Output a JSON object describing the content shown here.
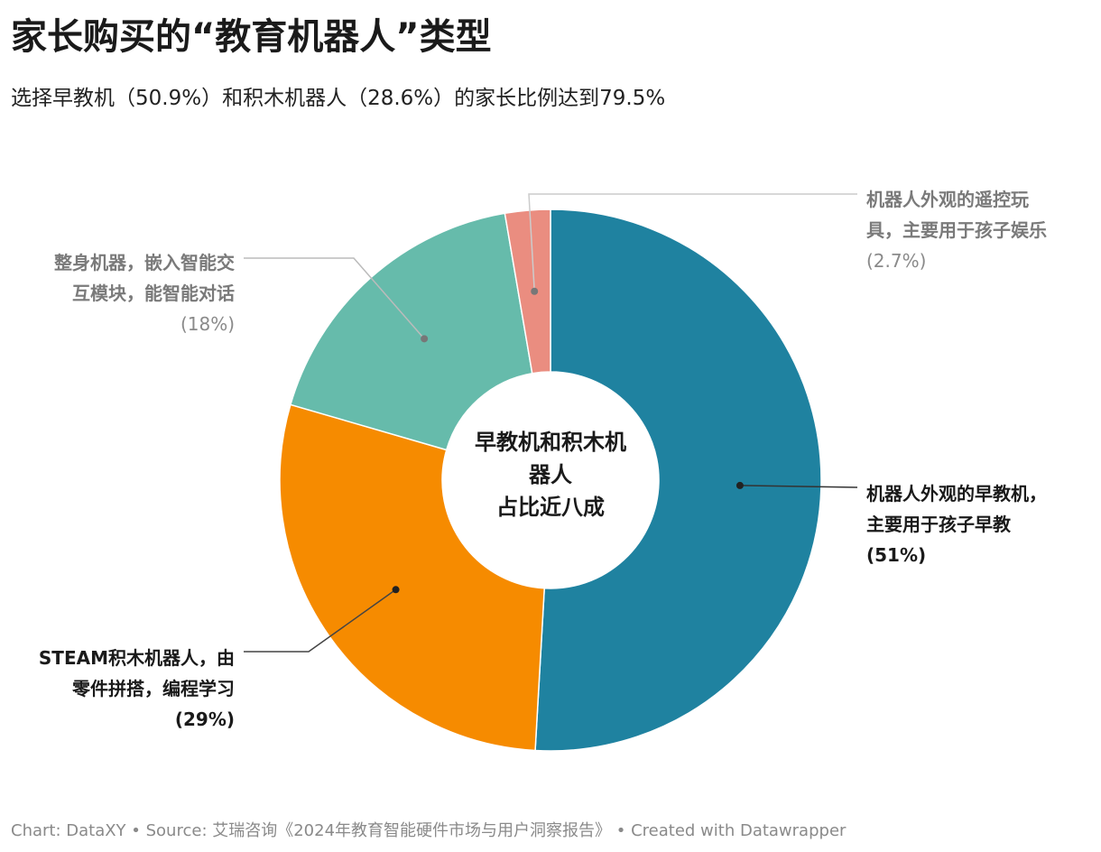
{
  "title": "家长购买的“教育机器人”类型",
  "subtitle": "选择早教机（50.9%）和积木机器人（28.6%）的家长比例达到79.5%",
  "center_label": [
    "早教机和积木机",
    "器人",
    "占比近八成"
  ],
  "footer": "Chart: DataXY • Source: 艾瑞咨询《2024年教育智能硬件市场与用户洞察报告》 • Created with Datawrapper",
  "chart_data": {
    "type": "pie",
    "donut": true,
    "title": "家长购买的“教育机器人”类型",
    "slices": [
      {
        "label_lines": [
          "机器人外观的早教机，",
          "主要用于孩子早教"
        ],
        "pct_label": "(51%)",
        "value": 50.9,
        "color": "#1f82a0"
      },
      {
        "label_lines": [
          "STEAM积木机器人，由",
          "零件拼搭，编程学习"
        ],
        "pct_label": "(29%)",
        "value": 28.6,
        "color": "#f68b00"
      },
      {
        "label_lines": [
          "整身机器，嵌入智能交",
          "互模块，能智能对话"
        ],
        "pct_label": "(18%)",
        "value": 17.8,
        "color": "#66bbab"
      },
      {
        "label_lines": [
          "机器人外观的遥控玩",
          "具，主要用于孩子娱乐"
        ],
        "pct_label": "(2.7%)",
        "value": 2.7,
        "color": "#ea8d80"
      }
    ],
    "legend": "none"
  }
}
